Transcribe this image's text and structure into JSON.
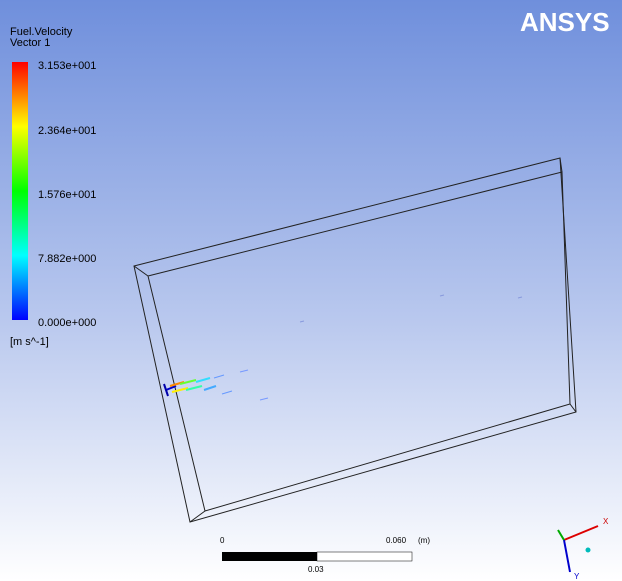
{
  "logo": "ANSYS",
  "legend": {
    "title": "Fuel.Velocity",
    "subtitle": "Vector 1",
    "labels": [
      "3.153e+001",
      "2.364e+001",
      "1.576e+001",
      "7.882e+000",
      "0.000e+000"
    ],
    "unit": "[m s^-1]"
  },
  "scale_bar": {
    "start": "0",
    "end": "0.060",
    "unit": "(m)",
    "mid": "0.03"
  },
  "triad": {
    "x": "X",
    "y": "Y"
  }
}
